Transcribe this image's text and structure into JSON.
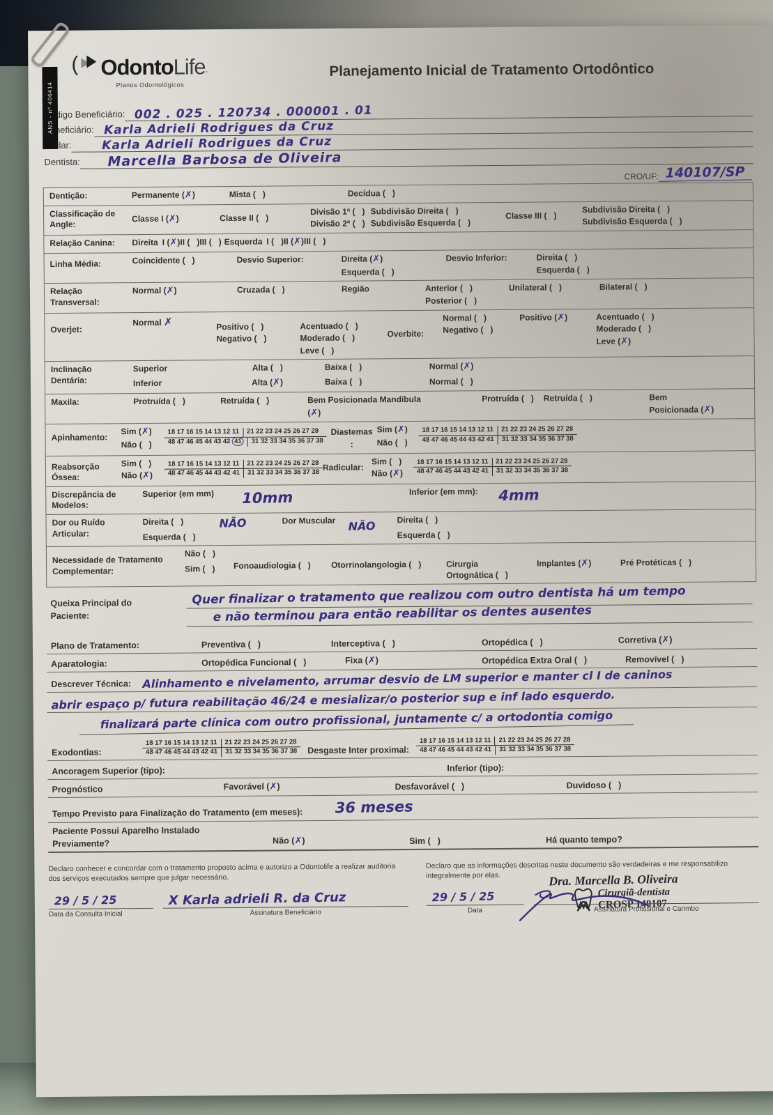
{
  "colors": {
    "ink": "#38307d",
    "paper": "#dad7d0",
    "backdrop_table": "#6f7b70",
    "stamp": "#26262e"
  },
  "backdrop": {
    "ans_tag": "ANS - nº 406414"
  },
  "header": {
    "logo_main": "Odonto",
    "logo_accent": "Life",
    "logo_reg": "·",
    "logo_sub": "Planos Odontológicos",
    "title": "Planejamento Inicial de Tratamento Ortodôntico"
  },
  "ident": {
    "codigo_label": "Código Beneficiário:",
    "codigo": "002 . 025 . 120734 . 000001 . 01",
    "beneficiario_label": "Beneficiário:",
    "beneficiario": "Karla Adrieli Rodrigues da Cruz",
    "titular_label": "Titular:",
    "titular": "Karla Adrieli Rodrigues da Cruz",
    "dentista_label": "Dentista:",
    "dentista": "Marcella Barbosa de Oliveira",
    "cro_label": "CRO/UF:",
    "cro": "140107/SP"
  },
  "tooth": {
    "q1": "18 17 16 15 14 13 12 11",
    "q2": "21 22 23 24 25 26 27 28",
    "q3": "31 32 33 34 35 36 37 38",
    "q4": "48 47 46 45 44 43 42 41",
    "q4_short": "48 47 46 45 44 43 42",
    "circled": "41"
  },
  "rows": {
    "denticao": {
      "label": "Dentição:",
      "permanente": {
        "t": "Permanente",
        "m": "✗"
      },
      "mista": {
        "t": "Mista",
        "m": ""
      },
      "decidua": {
        "t": "Decídua",
        "m": ""
      }
    },
    "angle": {
      "label1": "Classificação de",
      "label2": "Angle:",
      "classe1": {
        "t": "Classe I",
        "m": "✗"
      },
      "classe2": {
        "t": "Classe II",
        "m": ""
      },
      "div1": {
        "t": "Divisão 1ª",
        "m": ""
      },
      "sub_dir1": {
        "t": "Subdivisão Direita",
        "m": ""
      },
      "div2": {
        "t": "Divisão 2ª",
        "m": ""
      },
      "sub_esq1": {
        "t": "Subdivisão Esquerda",
        "m": ""
      },
      "classe3": {
        "t": "Classe III",
        "m": ""
      },
      "sub_dir2": {
        "t": "Subdivisão Direita",
        "m": ""
      },
      "sub_esq2": {
        "t": "Subdivisão Esquerda",
        "m": ""
      }
    },
    "canina": {
      "label": "Relação Canina:",
      "direita_label": "Direita",
      "d1": {
        "t": "I",
        "m": "✗"
      },
      "d2": {
        "t": "II",
        "m": ""
      },
      "d3": {
        "t": "III",
        "m": ""
      },
      "esquerda_label": "Esquerda",
      "e1": {
        "t": "I",
        "m": ""
      },
      "e2": {
        "t": "II",
        "m": "✗"
      },
      "e3": {
        "t": "III",
        "m": ""
      }
    },
    "linha_media": {
      "label": "Linha Média:",
      "coincidente": {
        "t": "Coincidente",
        "m": ""
      },
      "desvio_sup_label": "Desvio Superior:",
      "sup_dir": {
        "t": "Direita",
        "m": "✗"
      },
      "sup_esq": {
        "t": "Esquerda",
        "m": ""
      },
      "desvio_inf_label": "Desvio Inferior:",
      "inf_dir": {
        "t": "Direita",
        "m": ""
      },
      "inf_esq": {
        "t": "Esquerda",
        "m": ""
      }
    },
    "transversal": {
      "label1": "Relação",
      "label2": "Transversal:",
      "normal": {
        "t": "Normal",
        "m": "✗"
      },
      "cruzada": {
        "t": "Cruzada",
        "m": ""
      },
      "regiao_label": "Região",
      "anterior": {
        "t": "Anterior",
        "m": ""
      },
      "posterior": {
        "t": "Posterior",
        "m": ""
      },
      "unilateral": {
        "t": "Unilateral",
        "m": ""
      },
      "bilateral": {
        "t": "Bilateral",
        "m": ""
      }
    },
    "overjet": {
      "label": "Overjet:",
      "normal_label": "Normal",
      "normal_mark": "✗",
      "positivo": {
        "t": "Positivo",
        "m": ""
      },
      "negativo": {
        "t": "Negativo",
        "m": ""
      },
      "acentuado": {
        "t": "Acentuado",
        "m": ""
      },
      "moderado": {
        "t": "Moderado",
        "m": ""
      },
      "leve": {
        "t": "Leve",
        "m": ""
      },
      "overbite_label": "Overbite:",
      "ob_normal": {
        "t": "Normal",
        "m": ""
      },
      "ob_negativo": {
        "t": "Negativo",
        "m": ""
      },
      "ob_positivo": {
        "t": "Positivo",
        "m": "✗"
      },
      "ob_acentuado": {
        "t": "Acentuado",
        "m": ""
      },
      "ob_moderado": {
        "t": "Moderado",
        "m": ""
      },
      "ob_leve": {
        "t": "Leve",
        "m": "✗"
      }
    },
    "inclinacao": {
      "label1": "Inclinação",
      "label2": "Dentária:",
      "sup_label": "Superior",
      "inf_label": "Inferior",
      "sup_alta": {
        "t": "Alta",
        "m": ""
      },
      "inf_alta": {
        "t": "Alta",
        "m": "✗"
      },
      "sup_baixa": {
        "t": "Baixa",
        "m": ""
      },
      "inf_baixa": {
        "t": "Baixa",
        "m": ""
      },
      "sup_normal": {
        "t": "Normal",
        "m": "✗"
      },
      "inf_normal": {
        "t": "Normal",
        "m": ""
      }
    },
    "maxila": {
      "label": "Maxila:",
      "protruida": {
        "t": "Protruída",
        "m": ""
      },
      "retruida": {
        "t": "Retruída",
        "m": ""
      },
      "bem_mandibula_label": "Bem Posicionada Mandíbula",
      "bem_mark": "✗",
      "m_protruida": {
        "t": "Protruída",
        "m": ""
      },
      "m_retruida": {
        "t": "Retruída",
        "m": ""
      },
      "m_bem_label1": "Bem",
      "m_bem": {
        "t": "Posicionada",
        "m": "✗"
      }
    },
    "apinhamento": {
      "label": "Apinhamento:",
      "sim": {
        "t": "Sim",
        "m": "✗"
      },
      "nao": {
        "t": "Não",
        "m": ""
      },
      "diastemas_label": "Diastemas",
      "diastemas_colon": ":",
      "d_sim": {
        "t": "Sim",
        "m": "✗"
      },
      "d_nao": {
        "t": "Não",
        "m": ""
      }
    },
    "reabsorcao": {
      "label1": "Reabsorção",
      "label2": "Óssea:",
      "sim": {
        "t": "Sim",
        "m": ""
      },
      "nao": {
        "t": "Não",
        "m": "✗"
      },
      "radicular_label": "Radicular:",
      "r_sim": {
        "t": "Sim",
        "m": ""
      },
      "r_nao": {
        "t": "Não",
        "m": "✗"
      }
    },
    "discrepancia": {
      "label1": "Discrepância de",
      "label2": "Modelos:",
      "sup_label": "Superior (em mm)",
      "sup_value": "10mm",
      "inf_label": "Inferior (em mm):",
      "inf_value": "4mm"
    },
    "dor": {
      "label1": "Dor ou Ruído",
      "label2": "Articular:",
      "direita": {
        "t": "Direita",
        "m": ""
      },
      "esquerda": {
        "t": "Esquerda",
        "m": ""
      },
      "nao1": "NÃO",
      "muscular_label": "Dor Muscular",
      "nao2": "NÃO",
      "m_direita": {
        "t": "Direita",
        "m": ""
      },
      "m_esquerda": {
        "t": "Esquerda",
        "m": ""
      }
    },
    "complementar": {
      "label1": "Necessidade de Tratamento",
      "label2": "Complementar:",
      "nao": {
        "t": "Não",
        "m": ""
      },
      "sim": {
        "t": "Sim",
        "m": ""
      },
      "fono": {
        "t": "Fonoaudiologia",
        "m": ""
      },
      "otorrino": {
        "t": "Otorrinolangologia",
        "m": ""
      },
      "cirurgia_label1": "Cirurgia",
      "cirurgia": {
        "t": "Ortognática",
        "m": ""
      },
      "implantes": {
        "t": "Implantes",
        "m": "✗"
      },
      "pre": {
        "t": "Pré Protéticas",
        "m": ""
      }
    }
  },
  "queixa": {
    "label1": "Queixa      Principal      do",
    "label2": "Paciente:",
    "line1": "Quer finalizar o tratamento que realizou com outro dentista há um tempo",
    "line2": "e não terminou para então reabilitar os dentes ausentes"
  },
  "plano": {
    "label": "Plano de Tratamento:",
    "preventiva": {
      "t": "Preventiva",
      "m": ""
    },
    "interceptiva": {
      "t": "Interceptiva",
      "m": ""
    },
    "ortopedica": {
      "t": "Ortopédica",
      "m": ""
    },
    "corretiva": {
      "t": "Corretiva",
      "m": "✗"
    }
  },
  "aparatologia": {
    "label": "Aparatologia:",
    "funcional": {
      "t": "Ortopédica Funcional",
      "m": ""
    },
    "fixa": {
      "t": "Fixa",
      "m": "✗"
    },
    "extra_oral": {
      "t": "Ortopédica Extra Oral",
      "m": ""
    },
    "removivel": {
      "t": "Removível",
      "m": ""
    }
  },
  "tecnica": {
    "label": "Descrever Técnica:",
    "line1": "Alinhamento e nivelamento, arrumar desvio de LM superior e manter cl I de caninos",
    "line2": "abrir espaço p/ futura reabilitação 46/24 e mesializar/o posterior sup e inf lado esquerdo.",
    "line3": "finalizará parte clínica com outro profissional, juntamente c/ a ortodontia comigo"
  },
  "exodontias": {
    "label": "Exodontias:",
    "desgaste_label": "Desgaste Inter proximal:"
  },
  "ancoragem": {
    "sup_label": "Ancoragem Superior (tipo):",
    "inf_label": "Inferior (tipo):"
  },
  "prognostico": {
    "label": "Prognóstico",
    "favoravel": {
      "t": "Favorável",
      "m": "✗"
    },
    "desfavoravel": {
      "t": "Desfavorável",
      "m": ""
    },
    "duvidoso": {
      "t": "Duvidoso",
      "m": ""
    }
  },
  "tempo": {
    "label": "Tempo Previsto para Finalização do Tratamento (em meses):",
    "value": "36 meses"
  },
  "aparelho": {
    "label1": "Paciente Possui Aparelho Instalado",
    "label2": "Previamente?",
    "nao": {
      "t": "Não",
      "m": "✗"
    },
    "sim": {
      "t": "Sim",
      "m": ""
    },
    "tempo_label": "Há quanto tempo?"
  },
  "footer": {
    "decl_left": "Declaro conhecer e concordar com o tratamento proposto acima e autorizo a Odontolife a realizar auditoria dos serviços executados sempre que julgar necessário.",
    "decl_right": "Declaro que as informações descritas neste documento são verdadeiras e me responsabilizo integralmente por elas.",
    "date_left": "29  /  5  /  25",
    "date_left_label": "Data da Consulta Inicial",
    "sig_left": "X Karla adrieli R. da Cruz",
    "sig_left_label": "Assinatura Beneficiário",
    "date_right": "29  /  5  /  25",
    "date_right_label": "Data",
    "sig_right_label": "Assinatura Profissional e Carimbo",
    "stamp_name": "Dra. Marcella B. Oliveira",
    "stamp_role": "Cirurgiã-dentista",
    "stamp_cro": "CROSP 140107"
  }
}
